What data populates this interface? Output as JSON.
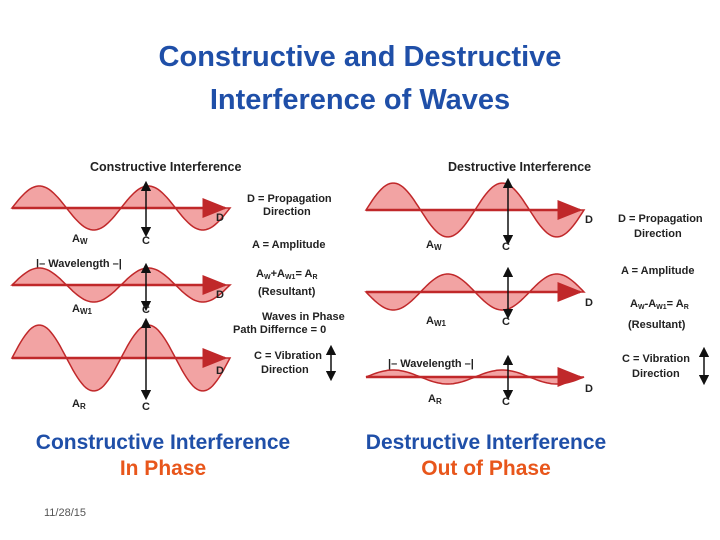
{
  "slide": {
    "title_line1": "Constructive and Destructive",
    "title_line2": "Interference of Waves",
    "date": "11/28/15"
  },
  "left_panel": {
    "heading": "Constructive Interference",
    "wave_labels": [
      "A",
      "A",
      "A"
    ],
    "wave_subscripts": [
      "W",
      "W1",
      "R"
    ],
    "c_label": "C",
    "d_label": "D",
    "wavelength_label": "Wavelength",
    "legend": {
      "d_line1": "D = Propagation",
      "d_line2": "Direction",
      "a_line": "A = Amplitude",
      "eq_a1": "A",
      "eq_sub1": "W",
      "eq_a2": "+A",
      "eq_sub2": "W1",
      "eq_a3": "= A",
      "eq_sub3": "R",
      "resultant": "(Resultant)",
      "phase_line1": "Waves in Phase",
      "phase_line2": "Path Differnce = 0",
      "c_line1": "C = Vibration",
      "c_line2": "Direction"
    },
    "caption_line1": "Constructive Interference",
    "caption_line2": "In Phase"
  },
  "right_panel": {
    "heading": "Destructive Interference",
    "wave_labels": [
      "A",
      "A",
      "A"
    ],
    "wave_subscripts": [
      "W",
      "W1",
      "R"
    ],
    "c_label": "C",
    "d_label": "D",
    "wavelength_label": "Wavelength",
    "legend": {
      "d_line1": "D = Propagation",
      "d_line2": "Direction",
      "a_line": "A = Amplitude",
      "eq_a1": "A",
      "eq_sub1": "W",
      "eq_a2": "-A",
      "eq_sub2": "W1",
      "eq_a3": "= A",
      "eq_sub3": "R",
      "resultant": "(Resultant)",
      "c_line1": "C = Vibration",
      "c_line2": "Direction"
    },
    "caption_line1": "Destructive Interference",
    "caption_line2": "Out of Phase"
  },
  "colors": {
    "title_blue": "#1f4fa8",
    "caption_orange": "#e8561b",
    "wave_fill": "#f2a3a3",
    "wave_stroke": "#c0282a",
    "axis_arrow": "#c0282a"
  }
}
